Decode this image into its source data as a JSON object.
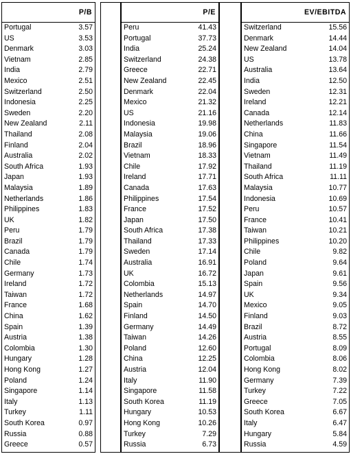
{
  "tables": [
    {
      "header": "P/B",
      "rows": [
        {
          "country": "Portugal",
          "value": "3.57"
        },
        {
          "country": "US",
          "value": "3.53"
        },
        {
          "country": "Denmark",
          "value": "3.03"
        },
        {
          "country": "Vietnam",
          "value": "2.85"
        },
        {
          "country": "India",
          "value": "2.79"
        },
        {
          "country": "Mexico",
          "value": "2.51"
        },
        {
          "country": "Switzerland",
          "value": "2.50"
        },
        {
          "country": "Indonesia",
          "value": "2.25"
        },
        {
          "country": "Sweden",
          "value": "2.20"
        },
        {
          "country": "New Zealand",
          "value": "2.11"
        },
        {
          "country": "Thailand",
          "value": "2.08"
        },
        {
          "country": "Finland",
          "value": "2.04"
        },
        {
          "country": "Australia",
          "value": "2.02"
        },
        {
          "country": "South Africa",
          "value": "1.93"
        },
        {
          "country": "Japan",
          "value": "1.93"
        },
        {
          "country": "Malaysia",
          "value": "1.89"
        },
        {
          "country": "Netherlands",
          "value": "1.86"
        },
        {
          "country": "Philippines",
          "value": "1.83"
        },
        {
          "country": "UK",
          "value": "1.82"
        },
        {
          "country": "Peru",
          "value": "1.79"
        },
        {
          "country": "Brazil",
          "value": "1.79"
        },
        {
          "country": "Canada",
          "value": "1.79"
        },
        {
          "country": "Chile",
          "value": "1.74"
        },
        {
          "country": "Germany",
          "value": "1.73"
        },
        {
          "country": "Ireland",
          "value": "1.72"
        },
        {
          "country": "Taiwan",
          "value": "1.72"
        },
        {
          "country": "France",
          "value": "1.68"
        },
        {
          "country": "China",
          "value": "1.62"
        },
        {
          "country": "Spain",
          "value": "1.39"
        },
        {
          "country": "Austria",
          "value": "1.38"
        },
        {
          "country": "Colombia",
          "value": "1.30"
        },
        {
          "country": "Hungary",
          "value": "1.28"
        },
        {
          "country": "Hong Kong",
          "value": "1.27"
        },
        {
          "country": "Poland",
          "value": "1.24"
        },
        {
          "country": "Singapore",
          "value": "1.14"
        },
        {
          "country": "Italy",
          "value": "1.13"
        },
        {
          "country": "Turkey",
          "value": "1.11"
        },
        {
          "country": "South Korea",
          "value": "0.97"
        },
        {
          "country": "Russia",
          "value": "0.88"
        },
        {
          "country": "Greece",
          "value": "0.57"
        }
      ]
    },
    {
      "header": "P/E",
      "rows": [
        {
          "country": "Peru",
          "value": "41.43"
        },
        {
          "country": "Portugal",
          "value": "37.73"
        },
        {
          "country": "India",
          "value": "25.24"
        },
        {
          "country": "Switzerland",
          "value": "24.38"
        },
        {
          "country": "Greece",
          "value": "22.71"
        },
        {
          "country": "New Zealand",
          "value": "22.45"
        },
        {
          "country": "Denmark",
          "value": "22.04"
        },
        {
          "country": "Mexico",
          "value": "21.32"
        },
        {
          "country": "US",
          "value": "21.16"
        },
        {
          "country": "Indonesia",
          "value": "19.98"
        },
        {
          "country": "Malaysia",
          "value": "19.06"
        },
        {
          "country": "Brazil",
          "value": "18.96"
        },
        {
          "country": "Vietnam",
          "value": "18.33"
        },
        {
          "country": "Chile",
          "value": "17.92"
        },
        {
          "country": "Ireland",
          "value": "17.71"
        },
        {
          "country": "Canada",
          "value": "17.63"
        },
        {
          "country": "Philippines",
          "value": "17.54"
        },
        {
          "country": "France",
          "value": "17.52"
        },
        {
          "country": "Japan",
          "value": "17.50"
        },
        {
          "country": "South Africa",
          "value": "17.38"
        },
        {
          "country": "Thailand",
          "value": "17.33"
        },
        {
          "country": "Sweden",
          "value": "17.14"
        },
        {
          "country": "Australia",
          "value": "16.91"
        },
        {
          "country": "UK",
          "value": "16.72"
        },
        {
          "country": "Colombia",
          "value": "15.13"
        },
        {
          "country": "Netherlands",
          "value": "14.97"
        },
        {
          "country": "Spain",
          "value": "14.70"
        },
        {
          "country": "Finland",
          "value": "14.50"
        },
        {
          "country": "Germany",
          "value": "14.49"
        },
        {
          "country": "Taiwan",
          "value": "14.26"
        },
        {
          "country": "Poland",
          "value": "12.60"
        },
        {
          "country": "China",
          "value": "12.25"
        },
        {
          "country": "Austria",
          "value": "12.04"
        },
        {
          "country": "Italy",
          "value": "11.90"
        },
        {
          "country": "Singapore",
          "value": "11.58"
        },
        {
          "country": "South Korea",
          "value": "11.19"
        },
        {
          "country": "Hungary",
          "value": "10.53"
        },
        {
          "country": "Hong Kong",
          "value": "10.26"
        },
        {
          "country": "Turkey",
          "value": "7.29"
        },
        {
          "country": "Russia",
          "value": "6.73"
        }
      ]
    },
    {
      "header": "EV/EBITDA",
      "rows": [
        {
          "country": "Switzerland",
          "value": "15.56"
        },
        {
          "country": "Denmark",
          "value": "14.44"
        },
        {
          "country": "New Zealand",
          "value": "14.04"
        },
        {
          "country": "US",
          "value": "13.78"
        },
        {
          "country": "Australia",
          "value": "13.64"
        },
        {
          "country": "India",
          "value": "12.50"
        },
        {
          "country": "Sweden",
          "value": "12.31"
        },
        {
          "country": "Ireland",
          "value": "12.21"
        },
        {
          "country": "Canada",
          "value": "12.14"
        },
        {
          "country": "Netherlands",
          "value": "11.83"
        },
        {
          "country": "China",
          "value": "11.66"
        },
        {
          "country": "Singapore",
          "value": "11.54"
        },
        {
          "country": "Vietnam",
          "value": "11.49"
        },
        {
          "country": "Thailand",
          "value": "11.19"
        },
        {
          "country": "South Africa",
          "value": "11.11"
        },
        {
          "country": "Malaysia",
          "value": "10.77"
        },
        {
          "country": "Indonesia",
          "value": "10.69"
        },
        {
          "country": "Peru",
          "value": "10.57"
        },
        {
          "country": "France",
          "value": "10.41"
        },
        {
          "country": "Taiwan",
          "value": "10.21"
        },
        {
          "country": "Philippines",
          "value": "10.20"
        },
        {
          "country": "Chile",
          "value": "9.82"
        },
        {
          "country": "Poland",
          "value": "9.64"
        },
        {
          "country": "Japan",
          "value": "9.61"
        },
        {
          "country": "Spain",
          "value": "9.56"
        },
        {
          "country": "UK",
          "value": "9.34"
        },
        {
          "country": "Mexico",
          "value": "9.05"
        },
        {
          "country": "Finland",
          "value": "9.03"
        },
        {
          "country": "Brazil",
          "value": "8.72"
        },
        {
          "country": "Austria",
          "value": "8.55"
        },
        {
          "country": "Portugal",
          "value": "8.09"
        },
        {
          "country": "Colombia",
          "value": "8.06"
        },
        {
          "country": "Hong Kong",
          "value": "8.02"
        },
        {
          "country": "Germany",
          "value": "7.39"
        },
        {
          "country": "Turkey",
          "value": "7.22"
        },
        {
          "country": "Greece",
          "value": "7.05"
        },
        {
          "country": "South Korea",
          "value": "6.67"
        },
        {
          "country": "Italy",
          "value": "6.47"
        },
        {
          "country": "Hungary",
          "value": "5.84"
        },
        {
          "country": "Russia",
          "value": "4.59"
        }
      ]
    }
  ]
}
